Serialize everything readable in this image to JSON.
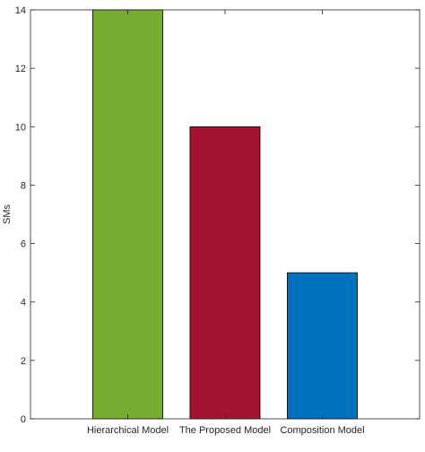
{
  "chart_data": {
    "type": "bar",
    "title": "",
    "xlabel": "",
    "ylabel": "SMs",
    "categories": [
      "Hierarchical Model",
      "The Proposed Model",
      "Composition Model"
    ],
    "values": [
      14,
      10,
      5
    ],
    "bar_colors": [
      "#77AC30",
      "#A2142F",
      "#0072BD"
    ],
    "ylim": [
      0,
      14
    ],
    "yticks": [
      0,
      2,
      4,
      6,
      8,
      10,
      12,
      14
    ],
    "grid": false,
    "legend": "none"
  }
}
